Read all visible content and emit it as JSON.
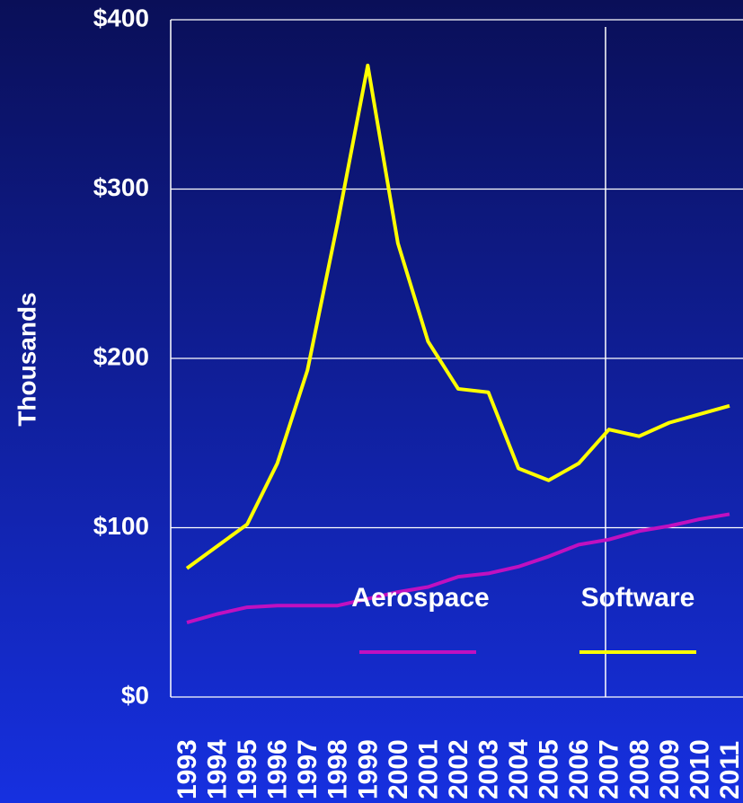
{
  "chart_data": {
    "type": "line",
    "y_label": "Thousands",
    "categories": [
      "1993",
      "1994",
      "1995",
      "1996",
      "1997",
      "1998",
      "1999",
      "2000",
      "2001",
      "2002",
      "2003",
      "2004",
      "2005",
      "2006",
      "2007",
      "2008",
      "2009",
      "2010",
      "2011"
    ],
    "series": [
      {
        "name": "Aerospace",
        "color": "#c010c0",
        "values": [
          44,
          49,
          53,
          54,
          54,
          54,
          58,
          62,
          65,
          71,
          73,
          77,
          83,
          90,
          93,
          98,
          101,
          105,
          108
        ]
      },
      {
        "name": "Software",
        "color": "#ffff00",
        "values": [
          76,
          89,
          102,
          138,
          193,
          280,
          373,
          268,
          210,
          182,
          180,
          135,
          128,
          138,
          158,
          154,
          162,
          167,
          172
        ]
      }
    ],
    "ylim": [
      0,
      400
    ],
    "yticks": [
      {
        "value": 0,
        "label": "$0"
      },
      {
        "value": 100,
        "label": "$100"
      },
      {
        "value": 200,
        "label": "$200"
      },
      {
        "value": 300,
        "label": "$300"
      },
      {
        "value": 400,
        "label": "$400"
      }
    ],
    "grid": true
  }
}
